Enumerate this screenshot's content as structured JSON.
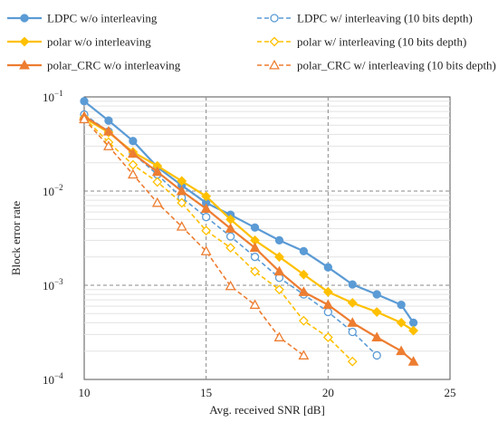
{
  "chart_data": {
    "type": "line",
    "xlabel": "Avg. received SNR [dB]",
    "ylabel": "Block error rate",
    "xlim": [
      10,
      25
    ],
    "ylim": [
      0.0001,
      0.1
    ],
    "yscale": "log",
    "x_ticks": [
      "10",
      "15",
      "20",
      "25"
    ],
    "y_ticks": [
      {
        "base": "10",
        "exp": "−1",
        "value": 0.1
      },
      {
        "base": "10",
        "exp": "−2",
        "value": 0.01
      },
      {
        "base": "10",
        "exp": "−3",
        "value": 0.001
      },
      {
        "base": "10",
        "exp": "−4",
        "value": 0.0001
      }
    ],
    "grid": true,
    "legend_position": "top",
    "series": [
      {
        "name": "LDPC w/o interleaving",
        "color": "#5B9BD5",
        "dash": "solid",
        "marker": "circle-filled",
        "x": [
          10,
          11,
          12,
          13,
          14,
          15,
          16,
          17,
          18,
          19,
          20,
          21,
          22,
          23,
          23.5
        ],
        "y": [
          0.09,
          0.056,
          0.034,
          0.018,
          0.0115,
          0.0075,
          0.0056,
          0.0041,
          0.003,
          0.0023,
          0.00155,
          0.00102,
          0.0008,
          0.00062,
          0.0004
        ]
      },
      {
        "name": "LDPC w/ interleaving (10 bits depth)",
        "color": "#5B9BD5",
        "dash": "dashed",
        "marker": "circle-open",
        "x": [
          10,
          11,
          12,
          13,
          14,
          15,
          16,
          17,
          18,
          19,
          20,
          21,
          22
        ],
        "y": [
          0.065,
          0.043,
          0.025,
          0.015,
          0.0085,
          0.0053,
          0.0033,
          0.002,
          0.0012,
          0.0008,
          0.00052,
          0.00032,
          0.00018
        ]
      },
      {
        "name": "polar w/o interleaving",
        "color": "#FFC000",
        "dash": "solid",
        "marker": "diamond-filled",
        "x": [
          10,
          11,
          12,
          13,
          14,
          15,
          16,
          17,
          18,
          19,
          20,
          21,
          22,
          23,
          23.5
        ],
        "y": [
          0.06,
          0.042,
          0.026,
          0.0185,
          0.0128,
          0.0088,
          0.005,
          0.003,
          0.002,
          0.0013,
          0.00085,
          0.00065,
          0.00052,
          0.0004,
          0.00033
        ]
      },
      {
        "name": "polar w/ interleaving (10 bits depth)",
        "color": "#FFC000",
        "dash": "dashed",
        "marker": "diamond-open",
        "x": [
          10,
          11,
          12,
          13,
          14,
          15,
          16,
          17,
          18,
          19,
          20,
          21
        ],
        "y": [
          0.06,
          0.033,
          0.019,
          0.0125,
          0.0075,
          0.0038,
          0.0025,
          0.0014,
          0.0009,
          0.00042,
          0.00028,
          0.000155
        ]
      },
      {
        "name": "polar_CRC w/o interleaving",
        "color": "#ED7D31",
        "dash": "solid",
        "marker": "triangle-filled",
        "x": [
          10,
          11,
          12,
          13,
          14,
          15,
          16,
          17,
          18,
          19,
          20,
          21,
          22,
          23,
          23.5
        ],
        "y": [
          0.062,
          0.043,
          0.025,
          0.016,
          0.01,
          0.0065,
          0.004,
          0.0025,
          0.0014,
          0.00085,
          0.00062,
          0.0004,
          0.00028,
          0.0002,
          0.000155
        ]
      },
      {
        "name": "polar_CRC w/ interleaving (10 bits depth)",
        "color": "#ED7D31",
        "dash": "dashed",
        "marker": "triangle-open",
        "x": [
          10,
          11,
          12,
          13,
          14,
          15,
          16,
          17,
          18,
          19
        ],
        "y": [
          0.058,
          0.03,
          0.015,
          0.0075,
          0.0042,
          0.0023,
          0.00098,
          0.00062,
          0.00028,
          0.00018
        ]
      }
    ]
  }
}
